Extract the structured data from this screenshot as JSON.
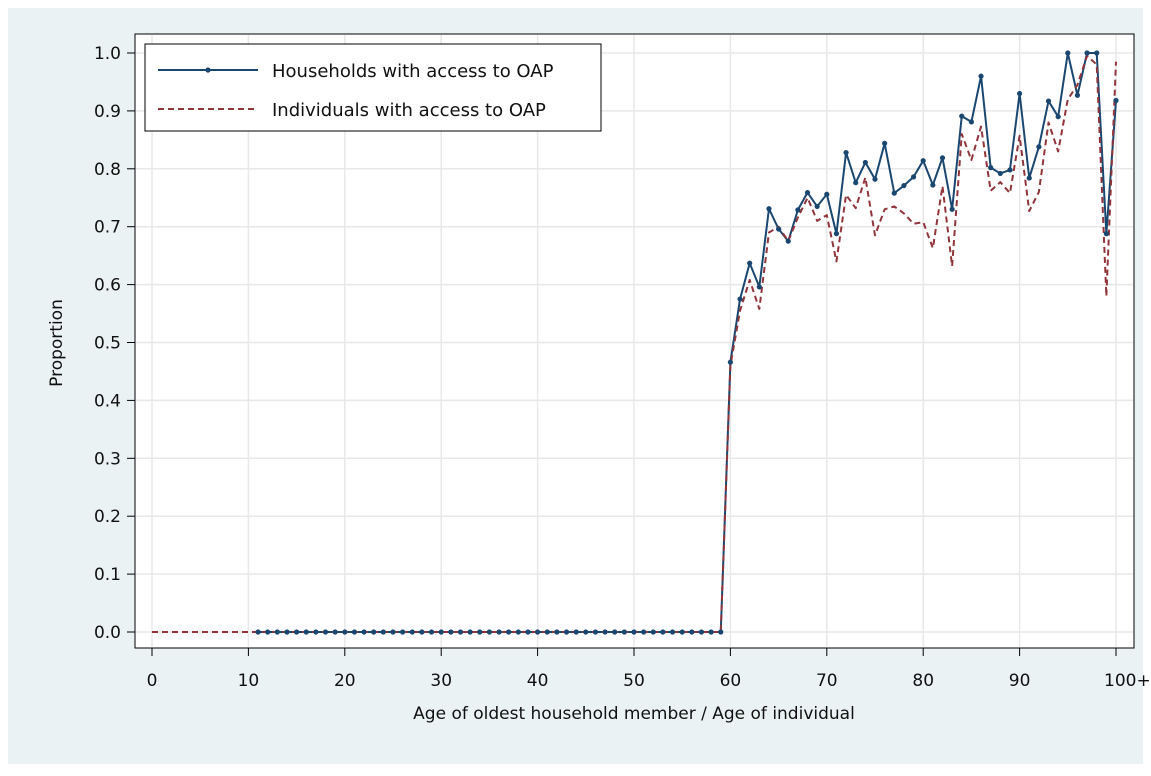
{
  "chart_data": {
    "type": "line",
    "xlabel": "Age of oldest household member / Age of individual",
    "ylabel": "Proportion",
    "xlim": [
      0,
      100
    ],
    "ylim": [
      0,
      1
    ],
    "x_ticks": [
      0,
      10,
      20,
      30,
      40,
      50,
      60,
      70,
      80,
      90,
      100
    ],
    "x_tick_labels": [
      "0",
      "10",
      "20",
      "30",
      "40",
      "50",
      "60",
      "70",
      "80",
      "90",
      "100+"
    ],
    "y_ticks": [
      0,
      0.1,
      0.2,
      0.3,
      0.4,
      0.5,
      0.6,
      0.7,
      0.8,
      0.9,
      1.0
    ],
    "y_tick_labels": [
      "0.0",
      "0.1",
      "0.2",
      "0.3",
      "0.4",
      "0.5",
      "0.6",
      "0.7",
      "0.8",
      "0.9",
      "1.0"
    ],
    "grid": true,
    "legend_position": "top-left",
    "series": [
      {
        "name": "Households with access to OAP",
        "style": "solid-with-markers",
        "color": "#1a476f",
        "x": [
          11,
          12,
          13,
          14,
          15,
          16,
          17,
          18,
          19,
          20,
          21,
          22,
          23,
          24,
          25,
          26,
          27,
          28,
          29,
          30,
          31,
          32,
          33,
          34,
          35,
          36,
          37,
          38,
          39,
          40,
          41,
          42,
          43,
          44,
          45,
          46,
          47,
          48,
          49,
          50,
          51,
          52,
          53,
          54,
          55,
          56,
          57,
          58,
          59,
          60,
          61,
          62,
          63,
          64,
          65,
          66,
          67,
          68,
          69,
          70,
          71,
          72,
          73,
          74,
          75,
          76,
          77,
          78,
          79,
          80,
          81,
          82,
          83,
          84,
          85,
          86,
          87,
          88,
          89,
          90,
          91,
          92,
          93,
          94,
          95,
          96,
          97,
          98,
          99,
          100
        ],
        "y": [
          0,
          0,
          0,
          0,
          0,
          0,
          0,
          0,
          0,
          0,
          0,
          0,
          0,
          0,
          0,
          0,
          0,
          0,
          0,
          0,
          0,
          0,
          0,
          0,
          0,
          0,
          0,
          0,
          0,
          0,
          0,
          0,
          0,
          0,
          0,
          0,
          0,
          0,
          0,
          0,
          0,
          0,
          0,
          0,
          0,
          0,
          0,
          0,
          0,
          0.466,
          0.575,
          0.637,
          0.596,
          0.731,
          0.696,
          0.675,
          0.729,
          0.759,
          0.735,
          0.756,
          0.688,
          0.828,
          0.776,
          0.811,
          0.782,
          0.844,
          0.758,
          0.771,
          0.786,
          0.814,
          0.772,
          0.819,
          0.73,
          0.891,
          0.881,
          0.96,
          0.802,
          0.792,
          0.798,
          0.93,
          0.784,
          0.838,
          0.917,
          0.89,
          1.0,
          0.927,
          1.0,
          1.0,
          0.688,
          0.918
        ]
      },
      {
        "name": "Individuals with access to OAP",
        "style": "dashed",
        "color": "#90353b",
        "x": [
          0,
          1,
          2,
          3,
          4,
          5,
          6,
          7,
          8,
          9,
          10,
          11,
          12,
          13,
          14,
          15,
          16,
          17,
          18,
          19,
          20,
          21,
          22,
          23,
          24,
          25,
          26,
          27,
          28,
          29,
          30,
          31,
          32,
          33,
          34,
          35,
          36,
          37,
          38,
          39,
          40,
          41,
          42,
          43,
          44,
          45,
          46,
          47,
          48,
          49,
          50,
          51,
          52,
          53,
          54,
          55,
          56,
          57,
          58,
          59,
          60,
          61,
          62,
          63,
          64,
          65,
          66,
          67,
          68,
          69,
          70,
          71,
          72,
          73,
          74,
          75,
          76,
          77,
          78,
          79,
          80,
          81,
          82,
          83,
          84,
          85,
          86,
          87,
          88,
          89,
          90,
          91,
          92,
          93,
          94,
          95,
          96,
          97,
          98,
          99,
          100
        ],
        "y": [
          0,
          0,
          0,
          0,
          0,
          0,
          0,
          0,
          0,
          0,
          0,
          0,
          0,
          0,
          0,
          0,
          0,
          0,
          0,
          0,
          0,
          0,
          0,
          0,
          0,
          0,
          0,
          0,
          0,
          0,
          0,
          0,
          0,
          0,
          0,
          0,
          0,
          0,
          0,
          0,
          0,
          0,
          0,
          0,
          0,
          0,
          0,
          0,
          0,
          0,
          0,
          0,
          0,
          0,
          0,
          0,
          0,
          0,
          0,
          0,
          0.46,
          0.555,
          0.608,
          0.558,
          0.69,
          0.7,
          0.675,
          0.716,
          0.75,
          0.71,
          0.72,
          0.64,
          0.755,
          0.732,
          0.785,
          0.685,
          0.73,
          0.735,
          0.723,
          0.705,
          0.708,
          0.663,
          0.77,
          0.632,
          0.86,
          0.815,
          0.873,
          0.762,
          0.777,
          0.758,
          0.857,
          0.727,
          0.76,
          0.88,
          0.83,
          0.92,
          0.945,
          0.995,
          0.98,
          0.58,
          0.985
        ]
      }
    ]
  }
}
